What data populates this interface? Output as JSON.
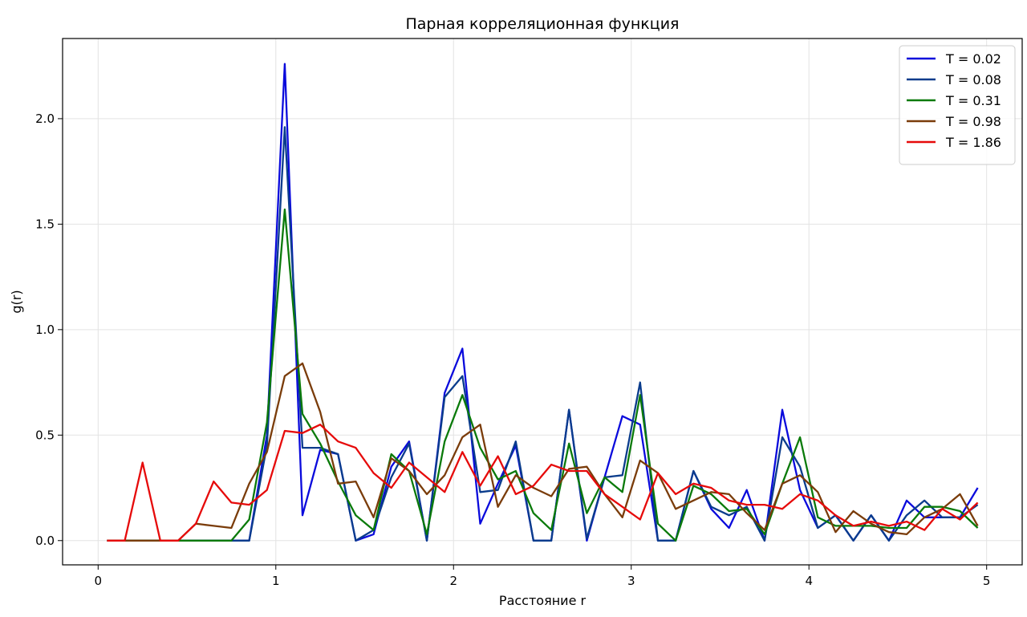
{
  "chart_data": {
    "type": "line",
    "title": "Парная корреляционная функция",
    "xlabel": "Расстояние r",
    "ylabel": "g(r)",
    "xlim": [
      -0.2,
      5.2
    ],
    "ylim": [
      -0.115,
      2.38
    ],
    "xticks": [
      0,
      1,
      2,
      3,
      4,
      5
    ],
    "xtick_labels": [
      "0",
      "1",
      "2",
      "3",
      "4",
      "5"
    ],
    "yticks": [
      0.0,
      0.5,
      1.0,
      1.5,
      2.0
    ],
    "ytick_labels": [
      "0.0",
      "0.5",
      "1.0",
      "1.5",
      "2.0"
    ],
    "grid": true,
    "legend_position": "top-right",
    "x": [
      0.05,
      0.15,
      0.25,
      0.35,
      0.45,
      0.55,
      0.65,
      0.75,
      0.85,
      0.95,
      1.05,
      1.15,
      1.25,
      1.35,
      1.45,
      1.55,
      1.65,
      1.75,
      1.85,
      1.95,
      2.05,
      2.15,
      2.25,
      2.35,
      2.45,
      2.55,
      2.65,
      2.75,
      2.85,
      2.95,
      3.05,
      3.15,
      3.25,
      3.35,
      3.45,
      3.55,
      3.65,
      3.75,
      3.85,
      3.95,
      4.05,
      4.15,
      4.25,
      4.35,
      4.45,
      4.55,
      4.65,
      4.75,
      4.85,
      4.95
    ],
    "series": [
      {
        "name": "T = 0.02",
        "color": "#0a0adc",
        "values": [
          0,
          0,
          0,
          0,
          0,
          0,
          0,
          0,
          0,
          0.5,
          2.26,
          0.12,
          0.43,
          0.41,
          0,
          0.03,
          0.35,
          0.47,
          0,
          0.7,
          0.91,
          0.08,
          0.27,
          0.45,
          0,
          0,
          0.62,
          0,
          0.3,
          0.59,
          0.55,
          0,
          0,
          0.33,
          0.15,
          0.06,
          0.24,
          0,
          0.62,
          0.24,
          0.06,
          0.12,
          0,
          0.12,
          0,
          0.19,
          0.11,
          0.11,
          0.11,
          0.25
        ]
      },
      {
        "name": "T = 0.08",
        "color": "#0a3c8c",
        "values": [
          0,
          0,
          0,
          0,
          0,
          0,
          0,
          0,
          0,
          0.45,
          1.96,
          0.44,
          0.44,
          0.41,
          0,
          0.05,
          0.3,
          0.46,
          0,
          0.68,
          0.78,
          0.23,
          0.24,
          0.47,
          0,
          0,
          0.62,
          0.01,
          0.3,
          0.31,
          0.75,
          0,
          0,
          0.33,
          0.16,
          0.12,
          0.16,
          0,
          0.49,
          0.35,
          0.06,
          0.12,
          0,
          0.12,
          0,
          0.12,
          0.19,
          0.11,
          0.11,
          0.17
        ]
      },
      {
        "name": "T = 0.31",
        "color": "#0a7a0a",
        "values": [
          0,
          0,
          0,
          0,
          0,
          0,
          0,
          0,
          0.1,
          0.56,
          1.57,
          0.6,
          0.46,
          0.28,
          0.12,
          0.05,
          0.41,
          0.33,
          0.03,
          0.47,
          0.69,
          0.44,
          0.29,
          0.33,
          0.13,
          0.05,
          0.46,
          0.13,
          0.3,
          0.23,
          0.69,
          0.08,
          0,
          0.26,
          0.22,
          0.14,
          0.15,
          0.03,
          0.27,
          0.49,
          0.11,
          0.07,
          0.07,
          0.07,
          0.06,
          0.06,
          0.16,
          0.16,
          0.14,
          0.06
        ]
      },
      {
        "name": "T = 0.98",
        "color": "#7a3c0a",
        "values": [
          0,
          0,
          0,
          0,
          0,
          0.08,
          0.07,
          0.06,
          0.27,
          0.42,
          0.78,
          0.84,
          0.61,
          0.27,
          0.28,
          0.11,
          0.39,
          0.33,
          0.22,
          0.31,
          0.49,
          0.55,
          0.16,
          0.31,
          0.25,
          0.21,
          0.34,
          0.35,
          0.22,
          0.11,
          0.38,
          0.32,
          0.15,
          0.19,
          0.23,
          0.22,
          0.13,
          0.05,
          0.27,
          0.31,
          0.23,
          0.04,
          0.14,
          0.08,
          0.04,
          0.03,
          0.11,
          0.15,
          0.22,
          0.07
        ]
      },
      {
        "name": "T = 1.86",
        "color": "#e60a0a",
        "values": [
          0,
          0,
          0.37,
          0,
          0,
          0.08,
          0.28,
          0.18,
          0.17,
          0.24,
          0.52,
          0.51,
          0.55,
          0.47,
          0.44,
          0.32,
          0.25,
          0.37,
          0.3,
          0.23,
          0.42,
          0.26,
          0.4,
          0.22,
          0.26,
          0.36,
          0.33,
          0.33,
          0.22,
          0.16,
          0.1,
          0.32,
          0.22,
          0.27,
          0.25,
          0.19,
          0.17,
          0.17,
          0.15,
          0.22,
          0.19,
          0.12,
          0.07,
          0.09,
          0.07,
          0.09,
          0.05,
          0.15,
          0.1,
          0.18
        ]
      }
    ]
  }
}
